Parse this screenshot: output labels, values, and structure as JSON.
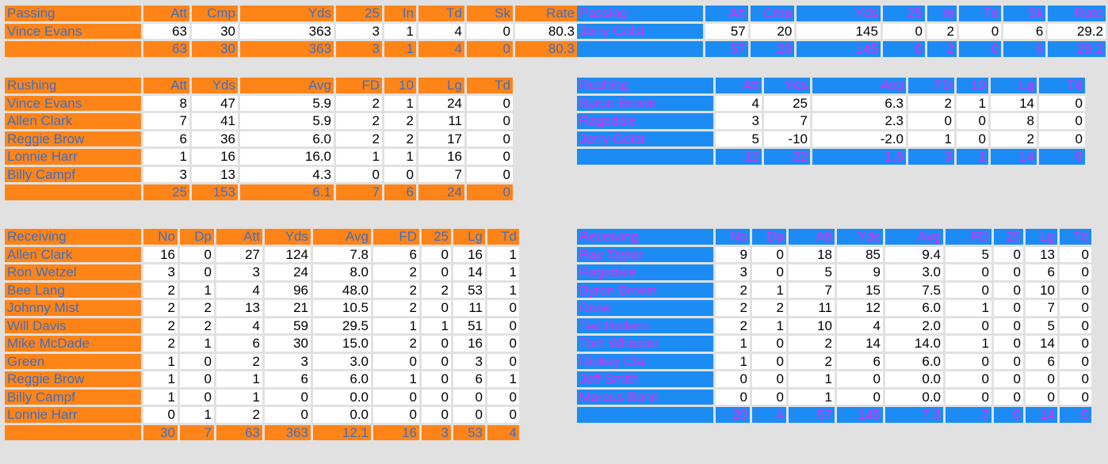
{
  "colors": {
    "home_header_bg": "#ff8418",
    "home_header_text": "#3f6fbf",
    "away_header_bg": "#1c8cf4",
    "away_header_text": "#e32af2",
    "cell_bg": "#ffffff",
    "page_bg": "#e1e1e1"
  },
  "home": {
    "passing": {
      "header": [
        "Passing",
        "Att",
        "Cmp",
        "Yds",
        "25",
        "In",
        "Td",
        "Sk",
        "Rate"
      ],
      "rows": [
        [
          "Vince Evans",
          "63",
          "30",
          "363",
          "3",
          "1",
          "4",
          "0",
          "80.3"
        ]
      ],
      "total": [
        "",
        "63",
        "30",
        "363",
        "3",
        "1",
        "4",
        "0",
        "80.3"
      ]
    },
    "rushing": {
      "header": [
        "Rushing",
        "Att",
        "Yds",
        "Avg",
        "FD",
        "10",
        "Lg",
        "Td"
      ],
      "rows": [
        [
          "Vince Evans",
          "8",
          "47",
          "5.9",
          "2",
          "1",
          "24",
          "0"
        ],
        [
          "Allen Clark",
          "7",
          "41",
          "5.9",
          "2",
          "2",
          "11",
          "0"
        ],
        [
          "Reggie Brow",
          "6",
          "36",
          "6.0",
          "2",
          "2",
          "17",
          "0"
        ],
        [
          "Lonnie Harr",
          "1",
          "16",
          "16.0",
          "1",
          "1",
          "16",
          "0"
        ],
        [
          "Billy Campf",
          "3",
          "13",
          "4.3",
          "0",
          "0",
          "7",
          "0"
        ]
      ],
      "total": [
        "",
        "25",
        "153",
        "6.1",
        "7",
        "6",
        "24",
        "0"
      ]
    },
    "receiving": {
      "header": [
        "Receiving",
        "No",
        "Dp",
        "Att",
        "Yds",
        "Avg",
        "FD",
        "25",
        "Lg",
        "Td"
      ],
      "rows": [
        [
          "Allen Clark",
          "16",
          "0",
          "27",
          "124",
          "7.8",
          "6",
          "0",
          "16",
          "1"
        ],
        [
          "Ron Wetzel",
          "3",
          "0",
          "3",
          "24",
          "8.0",
          "2",
          "0",
          "14",
          "1"
        ],
        [
          "Bee Lang",
          "2",
          "1",
          "4",
          "96",
          "48.0",
          "2",
          "2",
          "53",
          "1"
        ],
        [
          "Johnny Mist",
          "2",
          "2",
          "13",
          "21",
          "10.5",
          "2",
          "0",
          "11",
          "0"
        ],
        [
          "Will Davis",
          "2",
          "2",
          "4",
          "59",
          "29.5",
          "1",
          "1",
          "51",
          "0"
        ],
        [
          "Mike McDade",
          "2",
          "1",
          "6",
          "30",
          "15.0",
          "2",
          "0",
          "16",
          "0"
        ],
        [
          "Green",
          "1",
          "0",
          "2",
          "3",
          "3.0",
          "0",
          "0",
          "3",
          "0"
        ],
        [
          "Reggie Brow",
          "1",
          "0",
          "1",
          "6",
          "6.0",
          "1",
          "0",
          "6",
          "1"
        ],
        [
          "Billy Campf",
          "1",
          "0",
          "1",
          "0",
          "0.0",
          "0",
          "0",
          "0",
          "0"
        ],
        [
          "Lonnie Harr",
          "0",
          "1",
          "2",
          "0",
          "0.0",
          "0",
          "0",
          "0",
          "0"
        ]
      ],
      "total": [
        "",
        "30",
        "7",
        "63",
        "363",
        "12.1",
        "16",
        "3",
        "53",
        "4"
      ]
    }
  },
  "away": {
    "passing": {
      "header": [
        "Passing",
        "Att",
        "Cmp",
        "Yds",
        "25",
        "In",
        "Td",
        "Sk",
        "Rate"
      ],
      "rows": [
        [
          "Jerry Golst",
          "57",
          "20",
          "145",
          "0",
          "2",
          "0",
          "6",
          "29.2"
        ]
      ],
      "total": [
        "",
        "57",
        "20",
        "145",
        "0",
        "2",
        "0",
        "6",
        "29.2"
      ]
    },
    "rushing": {
      "header": [
        "Rushing",
        "Att",
        "Yds",
        "Avg",
        "FD",
        "10",
        "Lg",
        "Td"
      ],
      "rows": [
        [
          "Byron Brown",
          "4",
          "25",
          "6.3",
          "2",
          "1",
          "14",
          "0"
        ],
        [
          "Ragsdale",
          "3",
          "7",
          "2.3",
          "0",
          "0",
          "8",
          "0"
        ],
        [
          "Jerry Golst",
          "5",
          "-10",
          "-2.0",
          "1",
          "0",
          "2",
          "0"
        ]
      ],
      "total": [
        "",
        "12",
        "22",
        "1.8",
        "3",
        "1",
        "14",
        "0"
      ]
    },
    "receiving": {
      "header": [
        "Receiving",
        "No",
        "Dp",
        "Att",
        "Yds",
        "Avg",
        "FD",
        "25",
        "Lg",
        "Td"
      ],
      "rows": [
        [
          "Ray Taylor",
          "9",
          "0",
          "18",
          "85",
          "9.4",
          "5",
          "0",
          "13",
          "0"
        ],
        [
          "Ragsdale",
          "3",
          "0",
          "5",
          "9",
          "3.0",
          "0",
          "0",
          "6",
          "0"
        ],
        [
          "Byron Brown",
          "2",
          "1",
          "7",
          "15",
          "7.5",
          "0",
          "0",
          "10",
          "0"
        ],
        [
          "Rose",
          "2",
          "2",
          "11",
          "12",
          "6.0",
          "1",
          "0",
          "7",
          "0"
        ],
        [
          "Ted Hollern",
          "2",
          "1",
          "10",
          "4",
          "2.0",
          "0",
          "0",
          "5",
          "0"
        ],
        [
          "Tom Wheeler",
          "1",
          "0",
          "2",
          "14",
          "14.0",
          "1",
          "0",
          "14",
          "0"
        ],
        [
          "Rickey Clai",
          "1",
          "0",
          "2",
          "6",
          "6.0",
          "0",
          "0",
          "6",
          "0"
        ],
        [
          "Jeff Smith",
          "0",
          "0",
          "1",
          "0",
          "0.0",
          "0",
          "0",
          "0",
          "0"
        ],
        [
          "Marcus Bonn",
          "0",
          "0",
          "1",
          "0",
          "0.0",
          "0",
          "0",
          "0",
          "0"
        ]
      ],
      "total": [
        "",
        "20",
        "4",
        "57",
        "145",
        "7.3",
        "7",
        "0",
        "14",
        "0"
      ]
    }
  }
}
